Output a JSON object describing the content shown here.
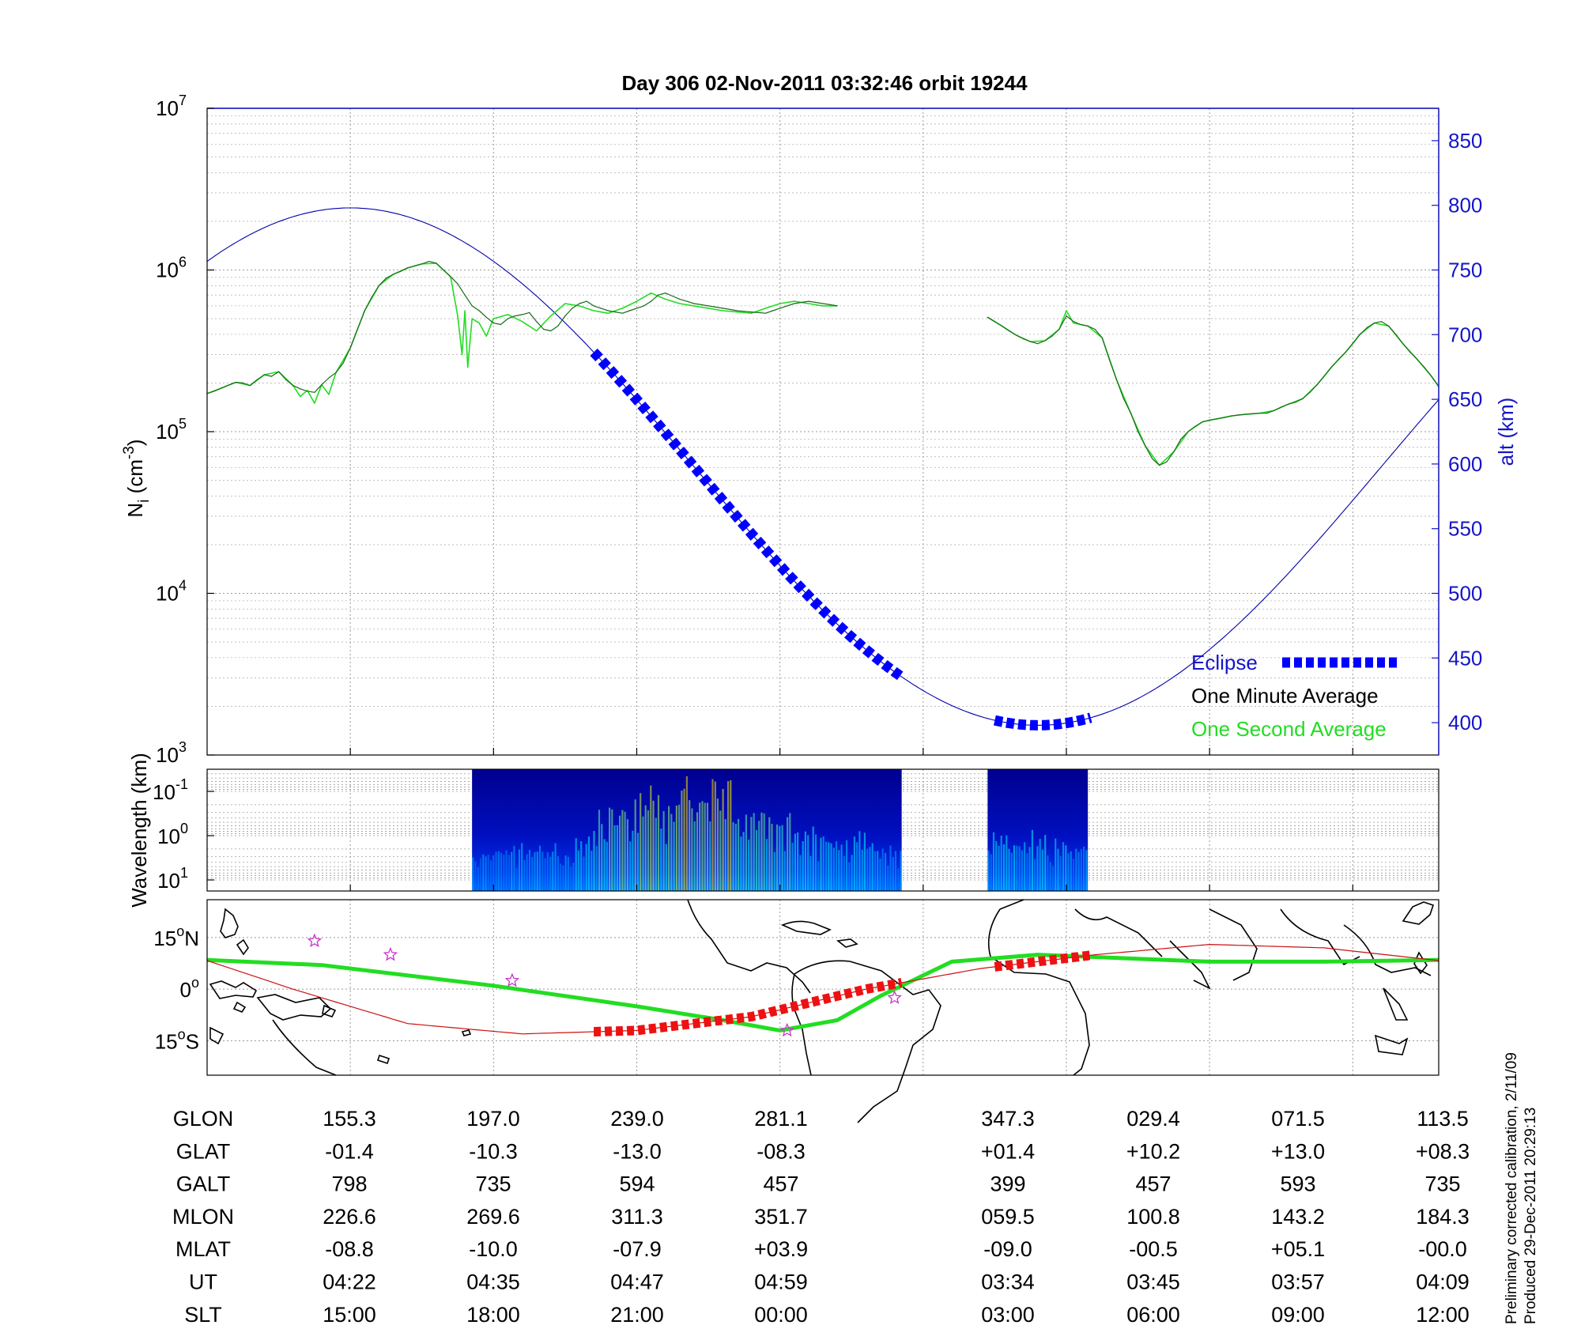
{
  "chart_data": [
    {
      "type": "line",
      "title": "Day 306  02-Nov-2011 03:32:46   orbit 19244",
      "ylabel_left": "N_i (cm^-3)",
      "ylabel_left_parts": {
        "base": "N",
        "sub": "i",
        "unit_open": " (cm",
        "sup": "-3",
        "unit_close": ")"
      },
      "ylabel_right": "alt (km)",
      "yscale_left": "log",
      "ylim_left": [
        1000,
        10000000
      ],
      "left_ticks": [
        {
          "base": "10",
          "exp": "3",
          "value": 1000
        },
        {
          "base": "10",
          "exp": "4",
          "value": 10000
        },
        {
          "base": "10",
          "exp": "5",
          "value": 100000
        },
        {
          "base": "10",
          "exp": "6",
          "value": 1000000
        },
        {
          "base": "10",
          "exp": "7",
          "value": 10000000
        }
      ],
      "ylim_right": [
        375,
        875
      ],
      "right_ticks": [
        "400",
        "450",
        "500",
        "550",
        "600",
        "650",
        "700",
        "750",
        "800",
        "850"
      ],
      "x_time_ticks_ut": [
        "04:22",
        "04:35",
        "04:47",
        "04:59",
        "03:34",
        "03:45",
        "03:57",
        "04:09"
      ],
      "x_data_gap": "orbit break between 05:05 and 03:28",
      "grid": true,
      "legend": {
        "position": "bottom-right",
        "entries": [
          {
            "label": "Eclipse",
            "color": "#0000ff",
            "style": "thick-dashed"
          },
          {
            "label": "One Minute Average",
            "color": "#000000",
            "style": "text-only"
          },
          {
            "label": "One Second Average",
            "color": "#00dd00",
            "style": "text-only"
          }
        ]
      },
      "series": [
        {
          "name": "One Minute Average",
          "color": "#1a6a1a",
          "y_axis": "left",
          "segments": [
            {
              "x": [
                0.0,
                0.5,
                1.0,
                1.5,
                2.0,
                2.5,
                3.0,
                3.5,
                4.0,
                4.5,
                5.0,
                5.5,
                6.0,
                6.5,
                7.0,
                7.5,
                8.0,
                8.5,
                9.0,
                9.5,
                10.0,
                10.5,
                11.0,
                11.5,
                12.0,
                12.5,
                13.0,
                13.5,
                14.0,
                14.5,
                15.0,
                15.5,
                16.0,
                16.5,
                17.0,
                17.5,
                18.0,
                18.5,
                19.0,
                19.5,
                20.0,
                20.5,
                21.0,
                21.5,
                22.0,
                22.5,
                23.0,
                23.5,
                24.0,
                24.5,
                25.0,
                25.5,
                26.0,
                26.5,
                27.0,
                27.5,
                28.0,
                28.5,
                29.0,
                29.5,
                30.0,
                30.5,
                31.0,
                31.5,
                32.0,
                32.5,
                33.0,
                33.5,
                34.0,
                34.5,
                35.0,
                35.5,
                36.0,
                36.5,
                37.0,
                37.5,
                38.0,
                38.5,
                39.0,
                39.5,
                40.0,
                40.5,
                41.0,
                41.5,
                42.0,
                42.5,
                43.0,
                43.5,
                44.0
              ],
              "y": [
                172000,
                178000,
                186000,
                194000,
                202000,
                200000,
                193000,
                210000,
                225000,
                220000,
                235000,
                210000,
                193000,
                184000,
                178000,
                175000,
                195000,
                215000,
                232000,
                265000,
                330000,
                430000,
                560000,
                680000,
                800000,
                890000,
                940000,
                980000,
                1030000,
                1060000,
                1090000,
                1130000,
                1100000,
                1000000,
                910000,
                820000,
                700000,
                600000,
                560000,
                510000,
                470000,
                460000,
                500000,
                520000,
                530000,
                545000,
                480000,
                430000,
                420000,
                450000,
                520000,
                580000,
                620000,
                640000,
                600000,
                580000,
                560000,
                550000,
                540000,
                560000,
                580000,
                600000,
                640000,
                700000,
                720000,
                690000,
                660000,
                640000,
                620000,
                610000,
                600000,
                590000,
                580000,
                570000,
                560000,
                555000,
                550000,
                545000,
                540000,
                560000,
                580000,
                600000,
                620000,
                630000,
                640000,
                630000,
                620000,
                610000,
                600000
              ]
            },
            {
              "x": [
                54.5,
                55.0,
                55.5,
                56.0,
                56.5,
                57.0,
                57.5,
                58.0,
                58.5,
                59.0,
                59.5,
                60.0,
                60.5,
                61.0,
                61.5,
                62.0,
                62.5,
                63.0,
                63.5,
                64.0,
                64.5,
                65.0,
                65.5,
                66.0,
                66.5,
                67.0,
                67.5,
                68.0,
                68.5,
                69.0,
                69.5,
                70.0,
                70.5,
                71.0,
                71.5,
                72.0,
                72.5,
                73.0,
                73.5,
                74.0,
                74.5,
                75.0,
                75.5,
                76.0,
                76.5,
                77.0,
                77.5,
                78.0,
                78.5,
                79.0,
                79.5,
                80.0,
                80.5,
                81.0,
                81.5,
                82.0,
                82.5,
                83.0,
                83.5,
                84.0,
                84.5,
                85.0,
                85.5,
                86.0
              ],
              "y": [
                510000,
                480000,
                450000,
                420000,
                395000,
                375000,
                360000,
                350000,
                365000,
                390000,
                430000,
                520000,
                480000,
                460000,
                450000,
                430000,
                380000,
                280000,
                210000,
                160000,
                130000,
                100000,
                82000,
                68000,
                62000,
                65000,
                75000,
                90000,
                100000,
                108000,
                115000,
                118000,
                120000,
                122000,
                125000,
                127000,
                128000,
                129000,
                130000,
                130000,
                135000,
                142000,
                148000,
                152000,
                160000,
                175000,
                195000,
                220000,
                250000,
                280000,
                310000,
                350000,
                400000,
                440000,
                470000,
                480000,
                450000,
                400000,
                350000,
                310000,
                280000,
                250000,
                220000,
                190000
              ]
            }
          ]
        },
        {
          "name": "One Second Average",
          "color": "#22dd22",
          "y_axis": "left",
          "segments": [
            {
              "x": [
                0.0,
                1.0,
                2.0,
                3.0,
                4.0,
                5.0,
                6.0,
                6.5,
                7.0,
                7.5,
                8.0,
                8.5,
                9.0,
                10.0,
                11.0,
                12.0,
                13.0,
                14.0,
                15.0,
                16.0,
                17.0,
                17.5,
                17.8,
                18.0,
                18.2,
                18.5,
                19.0,
                19.5,
                20.0,
                21.0,
                22.0,
                23.0,
                24.0,
                25.0,
                26.0,
                27.0,
                28.0,
                29.0,
                30.0,
                31.0,
                32.0,
                33.0,
                34.0,
                35.0,
                36.0,
                37.0,
                38.0,
                39.0,
                40.0,
                41.0,
                42.0,
                43.0,
                44.0
              ],
              "y": [
                172000,
                186000,
                202000,
                193000,
                225000,
                235000,
                193000,
                165000,
                180000,
                150000,
                195000,
                170000,
                232000,
                330000,
                560000,
                800000,
                940000,
                1030000,
                1090000,
                1100000,
                910000,
                520000,
                300000,
                560000,
                250000,
                500000,
                470000,
                390000,
                500000,
                530000,
                480000,
                420000,
                520000,
                620000,
                600000,
                560000,
                540000,
                580000,
                640000,
                720000,
                660000,
                620000,
                600000,
                580000,
                560000,
                550000,
                540000,
                580000,
                620000,
                640000,
                620000,
                600000,
                600000
              ]
            },
            {
              "x": [
                54.5,
                55.5,
                56.5,
                57.5,
                58.5,
                59.5,
                60.0,
                60.5,
                61.5,
                62.5,
                63.5,
                64.5,
                65.5,
                66.5,
                67.5,
                68.5,
                69.5,
                70.5,
                71.5,
                72.5,
                73.5,
                74.5,
                75.5,
                76.5,
                77.5,
                78.5,
                79.5,
                80.5,
                81.5,
                82.5,
                83.5,
                84.5,
                85.5,
                86.0
              ],
              "y": [
                510000,
                450000,
                395000,
                360000,
                365000,
                430000,
                560000,
                470000,
                450000,
                380000,
                210000,
                130000,
                82000,
                62000,
                75000,
                100000,
                115000,
                120000,
                125000,
                128000,
                130000,
                135000,
                148000,
                160000,
                195000,
                250000,
                310000,
                400000,
                470000,
                450000,
                350000,
                280000,
                220000,
                190000
              ]
            }
          ]
        },
        {
          "name": "alt (km)",
          "color": "#0000aa",
          "y_axis": "right",
          "orbit_model": {
            "mean_km": 598,
            "amplitude_km": 200,
            "period_x": 96,
            "apogee_x": 10.0
          }
        },
        {
          "name": "Eclipse",
          "color": "#0000ff",
          "y_axis": "right",
          "style": "thick-dashed",
          "x_ranges": [
            [
              27.0,
              48.5
            ],
            [
              55.0,
              61.7
            ]
          ]
        }
      ]
    },
    {
      "type": "heatmap",
      "ylabel": "Wavelength (km)",
      "yscale": "log",
      "y_ticks": [
        {
          "base": "10",
          "exp": "-1"
        },
        {
          "base": "10",
          "exp": "0"
        },
        {
          "base": "10",
          "exp": "1"
        }
      ],
      "colormap": "jet",
      "data_blocks_x": [
        [
          18.5,
          48.5
        ],
        [
          54.5,
          61.5
        ]
      ],
      "intensity_profile": [
        {
          "x": 18.5,
          "level": 0.25
        },
        {
          "x": 26.0,
          "level": 0.35
        },
        {
          "x": 28.0,
          "level": 0.6
        },
        {
          "x": 32.0,
          "level": 0.75
        },
        {
          "x": 34.0,
          "level": 0.95
        },
        {
          "x": 36.0,
          "level": 0.8
        },
        {
          "x": 40.0,
          "level": 0.55
        },
        {
          "x": 44.0,
          "level": 0.4
        },
        {
          "x": 48.5,
          "level": 0.3
        },
        {
          "x": 54.5,
          "level": 0.35
        },
        {
          "x": 58.0,
          "level": 0.4
        },
        {
          "x": 61.5,
          "level": 0.3
        }
      ]
    },
    {
      "type": "map",
      "lat_ticks": [
        {
          "value": "15",
          "deg": "o",
          "hemi": "N",
          "lat": 15
        },
        {
          "value": "0",
          "deg": "o",
          "hemi": "",
          "lat": 0
        },
        {
          "value": "15",
          "deg": "o",
          "hemi": "S",
          "lat": -15
        }
      ],
      "ylim": [
        -25,
        26
      ],
      "geomagnetic_equator_color": "#22dd22",
      "geomagnetic_equator": {
        "x": [
          0,
          8,
          20,
          30,
          36,
          40,
          44,
          47,
          52,
          58,
          64,
          70,
          78,
          86
        ],
        "lat": [
          8.5,
          7,
          1,
          -5,
          -9,
          -12,
          -9,
          -2,
          8,
          10,
          9,
          8,
          8,
          8.5
        ]
      },
      "ground_track_color": "#cc1111",
      "ground_track": {
        "x": [
          0,
          6,
          14,
          22,
          30,
          38,
          46,
          54,
          62,
          70,
          78,
          86
        ],
        "lat": [
          8.3,
          0,
          -10,
          -13,
          -12,
          -8,
          0,
          6,
          10,
          13,
          12,
          8.3
        ]
      },
      "ground_track_eclipse": [
        [
          27.0,
          48.5
        ],
        [
          55.0,
          61.7
        ]
      ],
      "stars": [
        {
          "x": 7.5,
          "lat": 14
        },
        {
          "x": 12.8,
          "lat": 10
        },
        {
          "x": 21.3,
          "lat": 2.5
        },
        {
          "x": 40.5,
          "lat": -12
        },
        {
          "x": 48.0,
          "lat": -2.5
        }
      ]
    }
  ],
  "table": {
    "row_labels": [
      "GLON",
      "GLAT",
      "GALT",
      "MLON",
      "MLAT",
      "UT",
      "SLT"
    ],
    "columns": [
      [
        "155.3",
        "-01.4",
        "798",
        "226.6",
        "-08.8",
        "04:22",
        "15:00"
      ],
      [
        "197.0",
        "-10.3",
        "735",
        "269.6",
        "-10.0",
        "04:35",
        "18:00"
      ],
      [
        "239.0",
        "-13.0",
        "594",
        "311.3",
        "-07.9",
        "04:47",
        "21:00"
      ],
      [
        "281.1",
        "-08.3",
        "457",
        "351.7",
        "+03.9",
        "04:59",
        "00:00"
      ],
      [
        "347.3",
        "+01.4",
        "399",
        "059.5",
        "-09.0",
        "03:34",
        "03:00"
      ],
      [
        "029.4",
        "+10.2",
        "457",
        "100.8",
        "-00.5",
        "03:45",
        "06:00"
      ],
      [
        "071.5",
        "+13.0",
        "593",
        "143.2",
        "+05.1",
        "03:57",
        "09:00"
      ],
      [
        "113.5",
        "+08.3",
        "735",
        "184.3",
        "-00.0",
        "04:09",
        "12:00"
      ]
    ]
  },
  "footnote": {
    "line1": "Preliminary corrected calibration, 2/11/09",
    "line2": "Produced 29-Dec-2011 20:29:13"
  }
}
